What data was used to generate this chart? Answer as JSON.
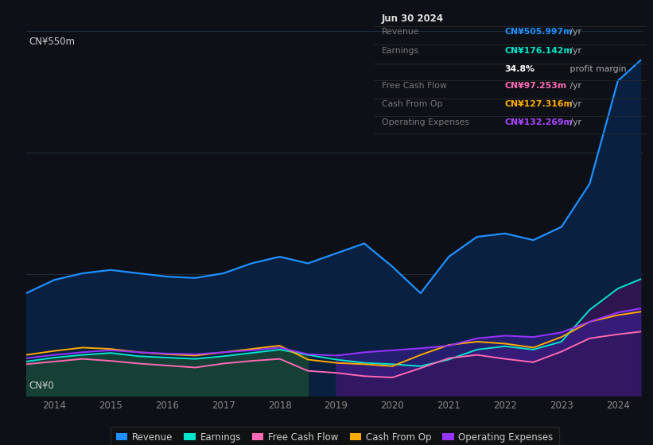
{
  "bg_color": "#0d1117",
  "title_box": {
    "date": "Jun 30 2024",
    "rows": [
      {
        "label": "Revenue",
        "value": "CN¥505.997m",
        "suffix": " /yr",
        "color": "#1e90ff"
      },
      {
        "label": "Earnings",
        "value": "CN¥176.142m",
        "suffix": " /yr",
        "color": "#00e5cc"
      },
      {
        "label": "",
        "value": "34.8%",
        "suffix": " profit margin",
        "color": "#ffffff"
      },
      {
        "label": "Free Cash Flow",
        "value": "CN¥97.253m",
        "suffix": " /yr",
        "color": "#ff69b4"
      },
      {
        "label": "Cash From Op",
        "value": "CN¥127.316m",
        "suffix": " /yr",
        "color": "#ffaa00"
      },
      {
        "label": "Operating Expenses",
        "value": "CN¥132.269m",
        "suffix": " /yr",
        "color": "#aa44ff"
      }
    ]
  },
  "years": [
    2013.5,
    2014.0,
    2014.5,
    2015.0,
    2015.5,
    2016.0,
    2016.5,
    2017.0,
    2017.5,
    2018.0,
    2018.5,
    2019.0,
    2019.5,
    2020.0,
    2020.5,
    2021.0,
    2021.5,
    2022.0,
    2022.5,
    2023.0,
    2023.5,
    2024.0,
    2024.4
  ],
  "revenue": [
    155,
    175,
    185,
    190,
    185,
    180,
    178,
    185,
    200,
    210,
    200,
    215,
    230,
    195,
    155,
    210,
    240,
    245,
    235,
    255,
    320,
    475,
    506
  ],
  "earnings": [
    52,
    58,
    62,
    65,
    60,
    58,
    56,
    60,
    65,
    70,
    62,
    55,
    50,
    48,
    45,
    55,
    70,
    75,
    70,
    82,
    130,
    162,
    176
  ],
  "free_cash": [
    48,
    52,
    56,
    53,
    49,
    46,
    43,
    49,
    53,
    56,
    38,
    35,
    30,
    28,
    42,
    57,
    62,
    56,
    51,
    67,
    87,
    93,
    97
  ],
  "cash_from_op": [
    62,
    68,
    73,
    71,
    66,
    63,
    61,
    66,
    71,
    76,
    55,
    50,
    48,
    45,
    62,
    77,
    82,
    79,
    73,
    89,
    112,
    122,
    127
  ],
  "op_expenses": [
    57,
    62,
    66,
    69,
    66,
    64,
    63,
    66,
    69,
    73,
    63,
    61,
    66,
    69,
    72,
    76,
    87,
    91,
    89,
    96,
    112,
    126,
    132
  ],
  "ylim": [
    0,
    550
  ],
  "xticks": [
    2014,
    2015,
    2016,
    2017,
    2018,
    2019,
    2020,
    2021,
    2022,
    2023,
    2024
  ],
  "revenue_color": "#1e90ff",
  "earnings_color": "#00e5cc",
  "free_cash_color": "#ff69b4",
  "cash_from_op_color": "#ffaa00",
  "op_expenses_color": "#9933ff",
  "legend_items": [
    {
      "label": "Revenue",
      "color": "#1e90ff"
    },
    {
      "label": "Earnings",
      "color": "#00e5cc"
    },
    {
      "label": "Free Cash Flow",
      "color": "#ff69b4"
    },
    {
      "label": "Cash From Op",
      "color": "#ffaa00"
    },
    {
      "label": "Operating Expenses",
      "color": "#9933ff"
    }
  ]
}
